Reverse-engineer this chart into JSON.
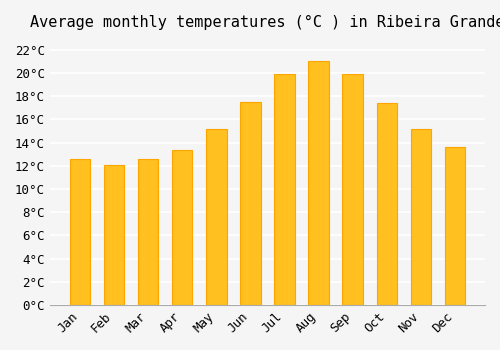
{
  "title": "Average monthly temperatures (°C ) in Ribeira Grande",
  "months": [
    "Jan",
    "Feb",
    "Mar",
    "Apr",
    "May",
    "Jun",
    "Jul",
    "Aug",
    "Sep",
    "Oct",
    "Nov",
    "Dec"
  ],
  "values": [
    12.6,
    12.1,
    12.6,
    13.4,
    15.2,
    17.5,
    19.9,
    21.0,
    19.9,
    17.4,
    15.2,
    13.6
  ],
  "bar_color": "#FFC020",
  "bar_edge_color": "#FFA500",
  "background_color": "#F5F5F5",
  "grid_color": "#FFFFFF",
  "ylim": [
    0,
    23
  ],
  "yticks": [
    0,
    2,
    4,
    6,
    8,
    10,
    12,
    14,
    16,
    18,
    20,
    22
  ],
  "title_fontsize": 11,
  "tick_fontsize": 9,
  "figsize": [
    5.0,
    3.5
  ],
  "dpi": 100
}
